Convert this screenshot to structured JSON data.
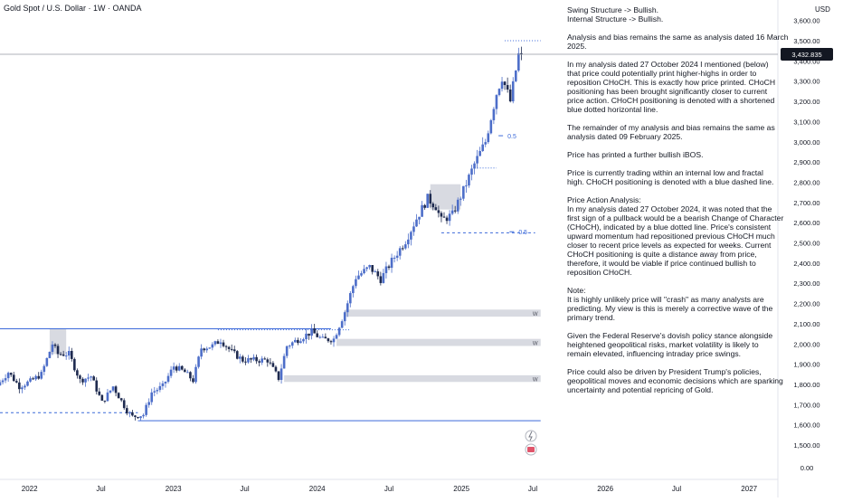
{
  "header": {
    "symbol": "Gold Spot / U.S. Dollar · 1W · OANDA",
    "currency": "USD"
  },
  "price_tag": "3,432.835",
  "colors": {
    "up": "#4d6ec9",
    "down": "#1e2a4f",
    "zone": "#d1d4dc",
    "blue_line": "#3c6ad9",
    "fib": "#3c6ad9",
    "grid": "#f0f3fa",
    "text": "#131722"
  },
  "annotations": {
    "fib_label_upper": "0.5",
    "fib_label_lower": "0.5",
    "zone_labels": [
      "W",
      "W",
      "W"
    ]
  },
  "notes": [
    [
      "Swing Structure -> Bullish.",
      "Internal Structure -> Bullish."
    ],
    [
      "Analysis and bias remains the same as analysis dated 16 March",
      "2025."
    ],
    [
      "In my analysis dated 27 October 2024 I mentioned (below)",
      "that price could potentially print higher-highs in order to",
      "reposition CHoCH.  This is exactly how price printed.  CHoCH",
      "positioning has been brought significantly closer to current",
      "price action.  CHoCH positioning is denoted with a shortened",
      "blue dotted horizontal line."
    ],
    [
      "The remainder of my analysis and bias remains the same as",
      "analysis dated 09 February 2025."
    ],
    [
      "Price has printed a further bullish iBOS."
    ],
    [
      "Price is currently trading within an internal low and fractal",
      "high.  CHoCH positioning is denoted with a blue dashed line."
    ],
    [
      "Price Action Analysis:",
      "In my analysis dated 27 October 2024, it was noted that the",
      "first sign of a pullback would be a bearish Change of Character",
      "(CHoCH), indicated by a blue dotted line. Price's consistent",
      "upward momentum had repositioned previous CHoCH much",
      "closer to recent price levels as expected for weeks. Current",
      "CHoCH positioning is quite a distance away from price,",
      "therefore, it would be viable if price continued bullish to",
      "reposition CHoCH."
    ],
    [
      "Note:",
      "It is highly unlikely price will \"crash\" as many analysts are",
      "predicting.  My view is this is merely a corrective wave of the",
      "primary trend."
    ],
    [
      "Given the Federal Reserve's dovish policy stance alongside",
      "heightened geopolitical risks, market volatility is likely to",
      "remain elevated, influencing intraday price swings."
    ],
    [
      "Price could also be driven by President Trump's policies,",
      "geopolitical moves and economic decisions which are sparking",
      "uncertainty and potential repricing of Gold."
    ]
  ],
  "chart_data": {
    "type": "candlestick",
    "title": "Gold Spot / U.S. Dollar · 1W · OANDA",
    "y_axis": {
      "unit": "USD",
      "range": [
        1450,
        3650
      ],
      "ticks": [
        "3,600.00",
        "3,500.00",
        "3,400.00",
        "3,300.00",
        "3,200.00",
        "3,100.00",
        "3,000.00",
        "2,900.00",
        "2,800.00",
        "2,700.00",
        "2,600.00",
        "2,500.00",
        "2,400.00",
        "2,300.00",
        "2,200.00",
        "2,100.00",
        "2,000.00",
        "1,900.00",
        "1,800.00",
        "1,700.00",
        "1,600.00",
        "1,500.00",
        "0.00"
      ],
      "tick_values": [
        3600,
        3500,
        3400,
        3300,
        3200,
        3100,
        3000,
        2900,
        2800,
        2700,
        2600,
        2500,
        2400,
        2300,
        2200,
        2100,
        2000,
        1900,
        1800,
        1700,
        1600,
        1500,
        null
      ]
    },
    "x_axis": {
      "labels": [
        "2022",
        "Jul",
        "2023",
        "Jul",
        "2024",
        "Jul",
        "2025",
        "Jul",
        "2026",
        "Jul",
        "2027"
      ],
      "dates": [
        "2022-01-01",
        "2022-07-01",
        "2023-01-01",
        "2023-07-01",
        "2024-01-01",
        "2024-07-01",
        "2025-01-01",
        "2025-07-01",
        "2026-01-01",
        "2026-07-01",
        "2027-01-01"
      ],
      "range": [
        "2021-10-18",
        "2027-03-15"
      ]
    },
    "last_price": 3432.835,
    "weekly_close_path": [
      [
        "2021-10-18",
        1795
      ],
      [
        "2021-11-15",
        1860
      ],
      [
        "2021-12-13",
        1790
      ],
      [
        "2022-01-10",
        1815
      ],
      [
        "2022-02-07",
        1850
      ],
      [
        "2022-03-07",
        2000
      ],
      [
        "2022-03-21",
        1950
      ],
      [
        "2022-04-18",
        1950
      ],
      [
        "2022-05-16",
        1820
      ],
      [
        "2022-06-13",
        1840
      ],
      [
        "2022-07-11",
        1710
      ],
      [
        "2022-08-08",
        1790
      ],
      [
        "2022-09-12",
        1670
      ],
      [
        "2022-09-26",
        1640
      ],
      [
        "2022-10-24",
        1650
      ],
      [
        "2022-11-14",
        1760
      ],
      [
        "2022-12-12",
        1790
      ],
      [
        "2023-01-09",
        1890
      ],
      [
        "2023-02-06",
        1860
      ],
      [
        "2023-02-27",
        1820
      ],
      [
        "2023-03-20",
        1980
      ],
      [
        "2023-04-17",
        1990
      ],
      [
        "2023-05-08",
        2020
      ],
      [
        "2023-06-05",
        1960
      ],
      [
        "2023-07-03",
        1920
      ],
      [
        "2023-08-07",
        1920
      ],
      [
        "2023-09-04",
        1920
      ],
      [
        "2023-10-02",
        1830
      ],
      [
        "2023-10-23",
        1990
      ],
      [
        "2023-11-27",
        2030
      ],
      [
        "2023-12-25",
        2060
      ],
      [
        "2024-01-22",
        2020
      ],
      [
        "2024-02-19",
        2025
      ],
      [
        "2024-03-18",
        2160
      ],
      [
        "2024-04-15",
        2330
      ],
      [
        "2024-05-20",
        2380
      ],
      [
        "2024-06-17",
        2320
      ],
      [
        "2024-07-15",
        2410
      ],
      [
        "2024-08-19",
        2510
      ],
      [
        "2024-09-16",
        2620
      ],
      [
        "2024-10-14",
        2720
      ],
      [
        "2024-11-04",
        2680
      ],
      [
        "2024-11-18",
        2610
      ],
      [
        "2024-12-16",
        2640
      ],
      [
        "2025-01-13",
        2760
      ],
      [
        "2025-02-10",
        2890
      ],
      [
        "2025-03-10",
        3000
      ],
      [
        "2025-04-07",
        3240
      ],
      [
        "2025-04-21",
        3320
      ],
      [
        "2025-05-12",
        3200
      ],
      [
        "2025-06-02",
        3430
      ]
    ],
    "series": [
      {
        "name": "",
        "type": "horizontal_level",
        "value": 2075,
        "from": "2021-10-18",
        "to": "2024-02-05",
        "style": "solid"
      },
      {
        "name": "",
        "type": "horizontal_level",
        "value": 1620,
        "from": "2022-10-03",
        "to": "2025-07-21",
        "style": "solid"
      },
      {
        "name": "",
        "type": "horizontal_level",
        "value": 1660,
        "from": "2021-10-18",
        "to": "2022-10-03",
        "style": "dashed"
      },
      {
        "name": "",
        "type": "horizontal_level",
        "value": 2070,
        "from": "2023-04-24",
        "to": "2024-03-25",
        "style": "dotted"
      },
      {
        "name": "",
        "type": "horizontal_level",
        "value": 2550,
        "from": "2024-11-11",
        "to": "2025-07-07",
        "style": "dashed"
      },
      {
        "name": "",
        "type": "horizontal_level",
        "value": 2870,
        "from": "2025-02-03",
        "to": "2025-03-31",
        "style": "dotted"
      },
      {
        "name": "",
        "type": "horizontal_level",
        "value": 3500,
        "from": "2025-04-21",
        "to": "2025-07-21",
        "style": "dotted"
      }
    ],
    "zones": [
      {
        "from_date": "2022-02-21",
        "to_date": "2022-04-04",
        "low": 1950,
        "high": 2075,
        "label": ""
      },
      {
        "from_date": "2024-10-14",
        "to_date": "2024-12-30",
        "low": 2665,
        "high": 2790,
        "label": ""
      },
      {
        "from_date": "2024-03-11",
        "to_date": "2025-07-21",
        "low": 2135,
        "high": 2170,
        "label": "W"
      },
      {
        "from_date": "2024-02-19",
        "to_date": "2025-07-21",
        "low": 1990,
        "high": 2025,
        "label": "W"
      },
      {
        "from_date": "2023-10-09",
        "to_date": "2025-07-21",
        "low": 1812,
        "high": 1845,
        "label": "W"
      }
    ],
    "fib_levels": [
      {
        "label": "0.5",
        "value": 3030
      },
      {
        "label": "0.5",
        "value": 2555
      }
    ],
    "grid": false,
    "legend": "none"
  }
}
